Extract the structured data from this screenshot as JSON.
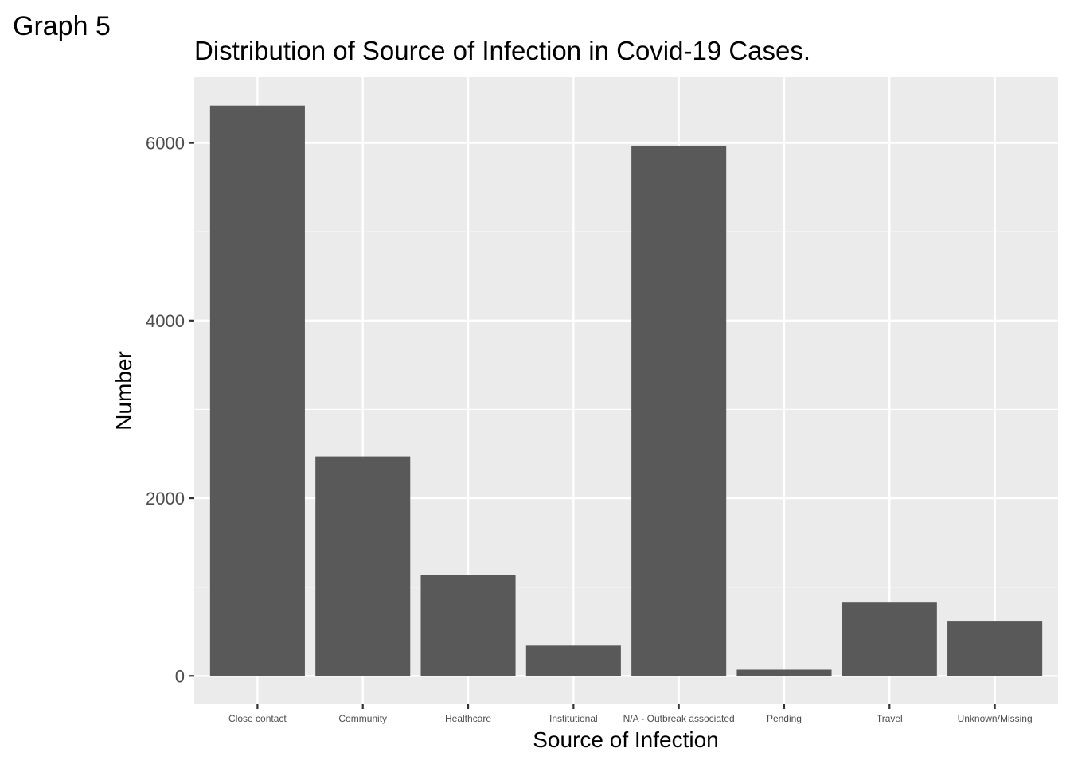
{
  "figure_label": "Graph 5",
  "chart_data": {
    "type": "bar",
    "title": "Distribution of Source of Infection in Covid-19 Cases.",
    "xlabel": "Source of Infection",
    "ylabel": "Number",
    "categories": [
      "Close contact",
      "Community",
      "Healthcare",
      "Institutional",
      "N/A - Outbreak associated",
      "Pending",
      "Travel",
      "Unknown/Missing"
    ],
    "values": [
      6420,
      2470,
      1140,
      340,
      5970,
      70,
      825,
      620
    ],
    "ylim": [
      -320,
      6740
    ],
    "yticks": [
      0,
      2000,
      4000,
      6000
    ],
    "grid": true,
    "colors": {
      "bar": "#595959",
      "panel": "#ebebeb",
      "grid": "#ffffff",
      "tick": "#333333",
      "text": "#000000",
      "ticklabel": "#4d4d4d"
    }
  }
}
